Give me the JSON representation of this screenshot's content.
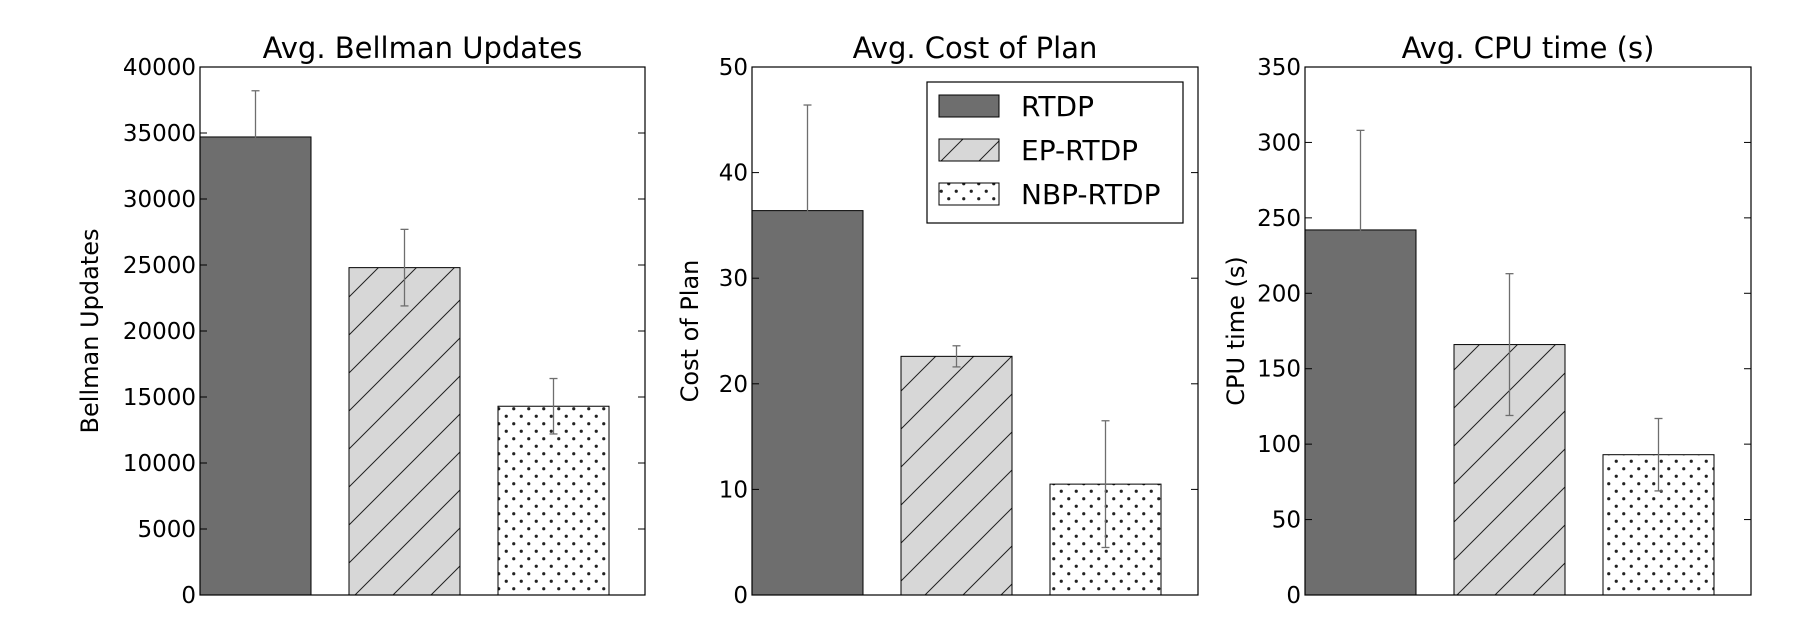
{
  "colors": {
    "rtdp": "#6e6e6e",
    "ep_rtdp": "#d7d7d7",
    "nbp_rtdp": "#ffffff",
    "error_bar": "#6e6e6e",
    "frame": "#000000"
  },
  "legend": {
    "placement": "top-right",
    "chart_index": 1,
    "entries": [
      {
        "name": "RTDP",
        "pattern": "solid"
      },
      {
        "name": "EP-RTDP",
        "pattern": "diagonal-hatch"
      },
      {
        "name": "NBP-RTDP",
        "pattern": "dots"
      }
    ]
  },
  "chart_data": [
    {
      "type": "bar",
      "title": "Avg. Bellman Updates",
      "xlabel": "",
      "ylabel": "Bellman Updates",
      "ylim": [
        0,
        40000
      ],
      "yticks": [
        0,
        5000,
        10000,
        15000,
        20000,
        25000,
        30000,
        35000,
        40000
      ],
      "grid": false,
      "categories": [
        "RTDP",
        "EP-RTDP",
        "NBP-RTDP"
      ],
      "values": [
        34700,
        24800,
        14300
      ],
      "errors": [
        3500,
        2900,
        2100
      ]
    },
    {
      "type": "bar",
      "title": "Avg. Cost of Plan",
      "xlabel": "",
      "ylabel": "Cost of Plan",
      "ylim": [
        0,
        50
      ],
      "yticks": [
        0,
        10,
        20,
        30,
        40,
        50
      ],
      "grid": false,
      "categories": [
        "RTDP",
        "EP-RTDP",
        "NBP-RTDP"
      ],
      "values": [
        36.4,
        22.6,
        10.5
      ],
      "errors": [
        10.0,
        1.0,
        6.0
      ]
    },
    {
      "type": "bar",
      "title": "Avg. CPU time (s)",
      "xlabel": "",
      "ylabel": "CPU time (s)",
      "ylim": [
        0,
        350
      ],
      "yticks": [
        0,
        50,
        100,
        150,
        200,
        250,
        300,
        350
      ],
      "grid": false,
      "categories": [
        "RTDP",
        "EP-RTDP",
        "NBP-RTDP"
      ],
      "values": [
        242,
        166,
        93
      ],
      "errors": [
        66,
        47,
        24
      ]
    }
  ]
}
